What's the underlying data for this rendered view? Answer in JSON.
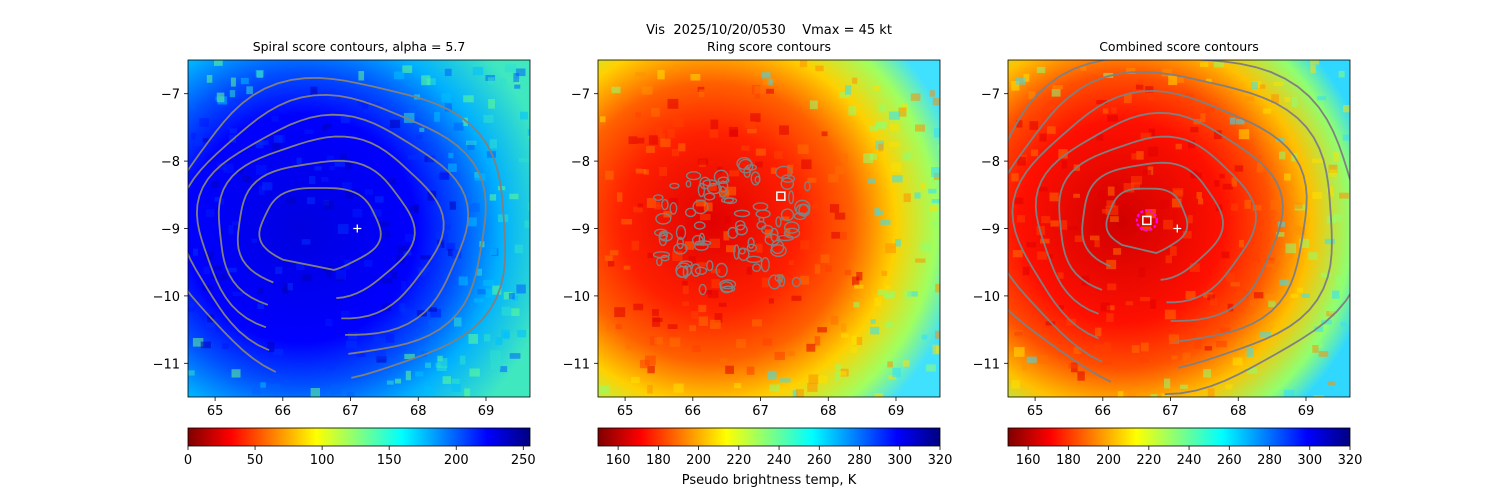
{
  "figure": {
    "suptitle": "Vis  2025/10/20/0530    Vmax = 45 kt",
    "colorbar_label": "Pseudo brightness temp, K"
  },
  "chart_data": [
    {
      "type": "heatmap",
      "title": "Spiral score contours, alpha =  5.7",
      "xlabel": "",
      "ylabel": "",
      "xlim": [
        64.6,
        69.65
      ],
      "ylim": [
        -11.5,
        -6.5
      ],
      "xticks": [
        "65",
        "66",
        "67",
        "68",
        "69"
      ],
      "yticks": [
        "−7",
        "−8",
        "−9",
        "−10",
        "−11"
      ],
      "colormap": "jet_r",
      "colorbar": {
        "range": [
          0,
          255
        ],
        "ticks": [
          "0",
          "50",
          "100",
          "150",
          "200",
          "250"
        ]
      },
      "contour_color": "#808080",
      "marker": {
        "symbol": "+",
        "x": 67.1,
        "y": -9.0,
        "color": "#ffffff"
      },
      "contour_center": [
        66.55,
        -9.0
      ]
    },
    {
      "type": "heatmap",
      "title": "Ring score contours",
      "xlabel": "",
      "ylabel": "",
      "xlim": [
        64.6,
        69.65
      ],
      "ylim": [
        -11.5,
        -6.5
      ],
      "xticks": [
        "65",
        "66",
        "67",
        "68",
        "69"
      ],
      "yticks": [
        "−7",
        "−8",
        "−9",
        "−10",
        "−11"
      ],
      "colormap": "jet_r",
      "colorbar": {
        "range": [
          150,
          320
        ],
        "ticks": [
          "160",
          "180",
          "200",
          "220",
          "240",
          "260",
          "280",
          "300",
          "320"
        ]
      },
      "contour_color": "#808080",
      "marker": {
        "symbol": "square",
        "x": 67.3,
        "y": -8.52,
        "color": "#ffffff"
      }
    },
    {
      "type": "heatmap",
      "title": "Combined score contours",
      "xlabel": "",
      "ylabel": "",
      "xlim": [
        64.6,
        69.65
      ],
      "ylim": [
        -11.5,
        -6.5
      ],
      "xticks": [
        "65",
        "66",
        "67",
        "68",
        "69"
      ],
      "yticks": [
        "−7",
        "−8",
        "−9",
        "−10",
        "−11"
      ],
      "colormap": "jet_r",
      "colorbar": {
        "range": [
          150,
          320
        ],
        "ticks": [
          "160",
          "180",
          "200",
          "220",
          "240",
          "260",
          "280",
          "300",
          "320"
        ]
      },
      "contour_color": "#808080",
      "marker": {
        "symbol": "+",
        "x": 67.1,
        "y": -9.0,
        "color": "#ffffff"
      },
      "center_marker": {
        "symbol": "square-in-circle",
        "x": 66.65,
        "y": -8.88,
        "circle_color": "#ff00ff"
      },
      "contour_center": [
        66.65,
        -8.88
      ]
    }
  ]
}
